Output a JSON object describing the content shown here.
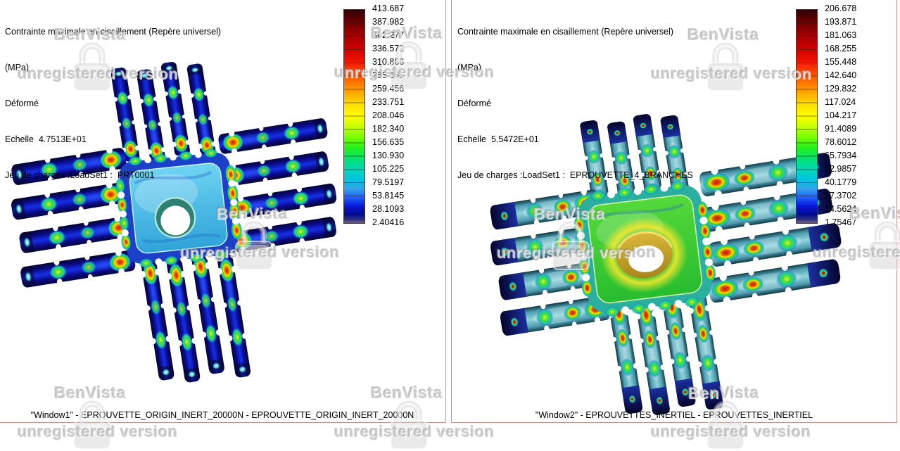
{
  "watermark": {
    "brand": "BenVista",
    "unregistered": "unregistered version"
  },
  "panels": [
    {
      "header_line1": "Contrainte maximale en cisaillement (Repère universel)",
      "header_line2": "(MPa)",
      "header_line3": "Déformé",
      "header_line4": "Echelle  4.7513E+01",
      "header_line5": "Jeu de charges :LoadSet1 :  PRT0001",
      "legend_values": [
        "413.687",
        "387.982",
        "362.277",
        "336.572",
        "310.866",
        "285.161",
        "259.456",
        "233.751",
        "208.046",
        "182.340",
        "156.635",
        "130.930",
        "105.225",
        "79.5197",
        "53.8145",
        "28.1093",
        "2.40416"
      ],
      "caption": "\"Window1\" - EPROUVETTE_ORIGIN_INERT_20000N - EPROUVETTE_ORIGIN_INERT_20000N"
    },
    {
      "header_line1": "Contrainte maximale en cisaillement (Repère universel)",
      "header_line2": "(MPa)",
      "header_line3": "Déformé",
      "header_line4": "Echelle  5.5472E+01",
      "header_line5": "Jeu de charges :LoadSet1 :  EPROUVETTE_4_BRANCHES",
      "legend_values": [
        "206.678",
        "193.871",
        "181.063",
        "168.255",
        "155.448",
        "142.640",
        "129.832",
        "117.024",
        "104.217",
        "91.4089",
        "78.6012",
        "65.7934",
        "52.9857",
        "40.1779",
        "27.3702",
        "14.5624",
        "1.75467"
      ],
      "caption": "\"Window2\" - EPROUVETTES_INERTIEL - EPROUVETTES_INERTIEL"
    }
  ],
  "colors": {
    "panel_border": "#c9968e",
    "legend_max": "#2d0007",
    "legend_min": "#9a9aba",
    "model1_strip": "#0b0b8c",
    "model1_plate": "#3fb8e8",
    "model2_strip": "#5fa8bc",
    "model2_plate": "#35d435",
    "hotspot_red": "#c81800",
    "hotspot_green": "#4ede33"
  }
}
